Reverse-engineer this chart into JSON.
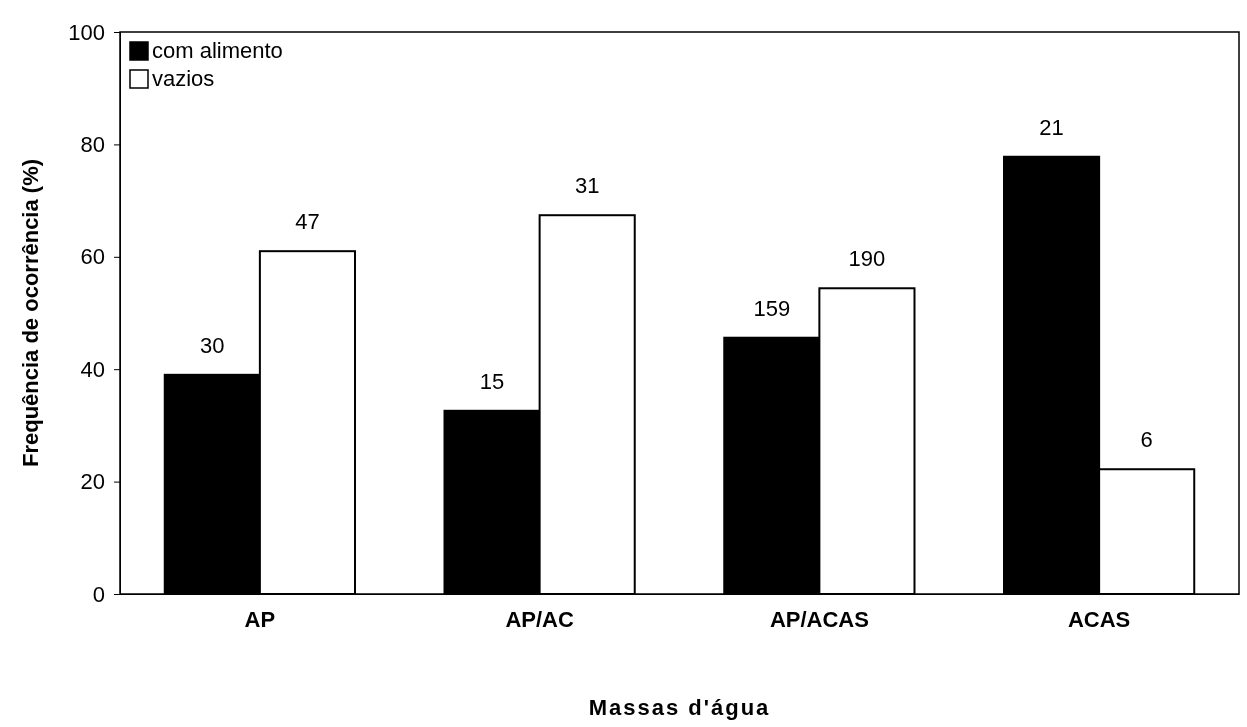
{
  "chart_data": {
    "type": "bar",
    "xlabel": "Massas d'água",
    "ylabel": "Frequência de ocorrência (%)",
    "categories": [
      "AP",
      "AP/AC",
      "AP/ACAS",
      "ACAS"
    ],
    "series": [
      {
        "name": "com alimento",
        "color": "#000000",
        "values": [
          39,
          32.6,
          45.6,
          77.8
        ]
      },
      {
        "name": "vazios",
        "color": "#ffffff",
        "values": [
          61,
          67.4,
          54.4,
          22.2
        ]
      }
    ],
    "annotations": [
      {
        "text": "30",
        "x": "AP",
        "y": 39
      },
      {
        "text": "47",
        "x": "AP",
        "y": 61
      },
      {
        "text": "15",
        "x": "AP/AC",
        "y": 32.6
      },
      {
        "text": "31",
        "x": "AP/AC",
        "y": 67.4
      },
      {
        "text": "159",
        "x": "AP/ACAS",
        "y": 45.6
      },
      {
        "text": "190",
        "x": "AP/ACAS",
        "y": 54.4
      },
      {
        "text": "21",
        "x": "ACAS",
        "y": 77.8
      },
      {
        "text": "6",
        "x": "ACAS",
        "y": 22.2
      }
    ],
    "ylim": [
      0,
      100
    ],
    "yticks": [
      0,
      20,
      40,
      60,
      80,
      100
    ],
    "legend": "top left"
  }
}
